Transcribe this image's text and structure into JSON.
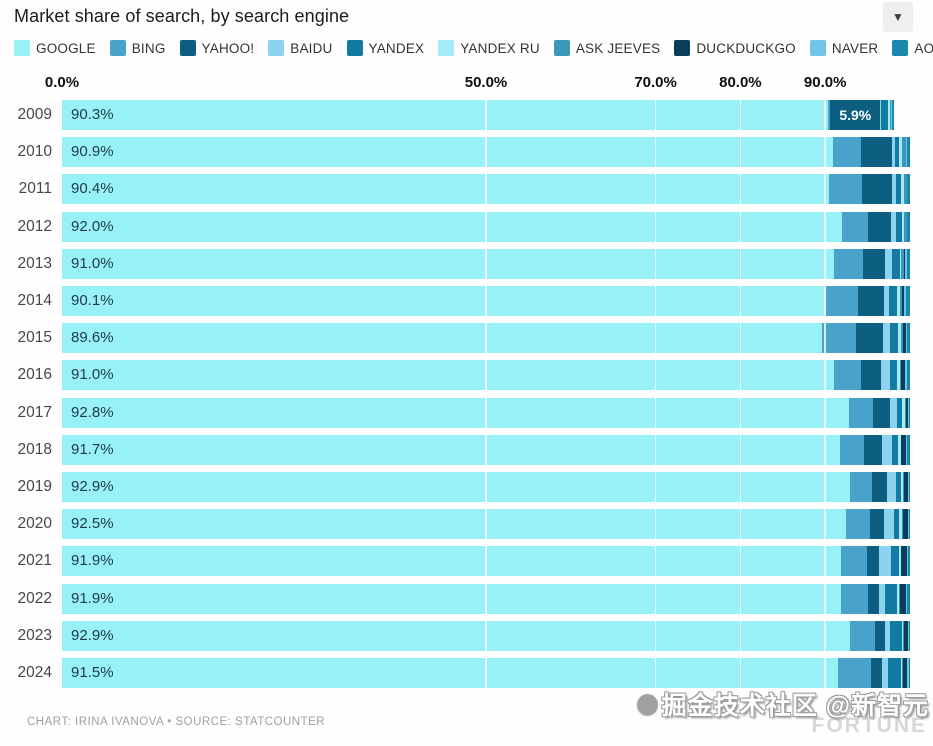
{
  "header": {
    "title": "Market share of search, by search engine",
    "caret": "▼"
  },
  "chart_data": {
    "type": "bar",
    "stacked": true,
    "orientation": "horizontal",
    "title": "Market share of search, by search engine",
    "categories": [
      "2009",
      "2010",
      "2011",
      "2012",
      "2013",
      "2014",
      "2015",
      "2016",
      "2017",
      "2018",
      "2019",
      "2020",
      "2021",
      "2022",
      "2023",
      "2024"
    ],
    "x_ticks": [
      {
        "label": "0.0%",
        "value": 0
      },
      {
        "label": "50.0%",
        "value": 50
      },
      {
        "label": "70.0%",
        "value": 70
      },
      {
        "label": "80.0%",
        "value": 80
      },
      {
        "label": "90.0%",
        "value": 90
      }
    ],
    "xlim": [
      0,
      100
    ],
    "grid": "vertical-white-over-bars",
    "legend_position": "top",
    "value_label_series": "GOOGLE",
    "annotations": [
      {
        "category": "2009",
        "series": "YAHOO!",
        "text": "5.9%"
      }
    ],
    "series": [
      {
        "name": "GOOGLE",
        "color": "#97F1F7",
        "values": [
          90.3,
          90.9,
          90.4,
          92.0,
          91.0,
          90.1,
          89.6,
          91.0,
          92.8,
          91.7,
          92.9,
          92.5,
          91.9,
          91.9,
          92.9,
          91.5
        ]
      },
      {
        "name": "BING",
        "color": "#4AA3CB",
        "values": [
          0.3,
          3.3,
          3.9,
          3.1,
          3.4,
          3.8,
          4.0,
          3.2,
          2.8,
          2.9,
          2.6,
          2.8,
          3.0,
          3.1,
          3.0,
          3.9
        ]
      },
      {
        "name": "YAHOO!",
        "color": "#0C5F81",
        "values": [
          5.9,
          3.7,
          3.6,
          2.7,
          2.7,
          3.0,
          3.2,
          2.4,
          2.0,
          2.1,
          1.8,
          1.6,
          1.5,
          1.3,
          1.2,
          1.3
        ]
      },
      {
        "name": "BAIDU",
        "color": "#8BD3EF",
        "values": [
          0.1,
          0.3,
          0.4,
          0.5,
          0.8,
          0.6,
          0.8,
          1.1,
          0.9,
          1.2,
          1.0,
          1.2,
          1.4,
          0.8,
          0.5,
          0.7
        ]
      },
      {
        "name": "YANDEX",
        "color": "#137AA1",
        "values": [
          0.8,
          0.5,
          0.7,
          0.8,
          0.9,
          1.0,
          1.0,
          0.8,
          0.6,
          0.7,
          0.6,
          0.6,
          0.9,
          1.4,
          1.5,
          1.6
        ]
      },
      {
        "name": "YANDEX RU",
        "color": "#A6EAF5",
        "values": [
          0.2,
          0.4,
          0.3,
          0.2,
          0.2,
          0.3,
          0.4,
          0.3,
          0.3,
          0.3,
          0.3,
          0.4,
          0.2,
          0.2,
          0.1,
          0.1
        ]
      },
      {
        "name": "ASK JEEVES",
        "color": "#3C96BA",
        "values": [
          0.2,
          0.4,
          0.3,
          0.3,
          0.3,
          0.3,
          0.2,
          0.2,
          0.1,
          0.1,
          0.1,
          0.1,
          0.1,
          0.1,
          0.1,
          0.1
        ]
      },
      {
        "name": "DUCKDUCKGO",
        "color": "#0A3C5B",
        "values": [
          0.0,
          0.0,
          0.0,
          0.0,
          0.1,
          0.2,
          0.3,
          0.4,
          0.3,
          0.5,
          0.5,
          0.6,
          0.7,
          0.7,
          0.5,
          0.5
        ]
      },
      {
        "name": "NAVER",
        "color": "#6FC5E5",
        "values": [
          0.1,
          0.1,
          0.1,
          0.1,
          0.2,
          0.2,
          0.2,
          0.2,
          0.1,
          0.2,
          0.1,
          0.1,
          0.1,
          0.2,
          0.1,
          0.2
        ]
      },
      {
        "name": "AOL",
        "color": "#1986AD",
        "values": [
          0.2,
          0.4,
          0.3,
          0.3,
          0.4,
          0.5,
          0.3,
          0.4,
          0.1,
          0.3,
          0.1,
          0.1,
          0.2,
          0.3,
          0.1,
          0.1
        ]
      }
    ]
  },
  "footer": {
    "credit": "CHART: IRINA IVANOVA • SOURCE: STATCOUNTER"
  },
  "watermark": {
    "text": "掘金技术社区 @新智元",
    "brand": "FORTUNE"
  },
  "layout_colors": {
    "value_label": "#1F3A45",
    "annotation_label": "#FFFFFF"
  }
}
